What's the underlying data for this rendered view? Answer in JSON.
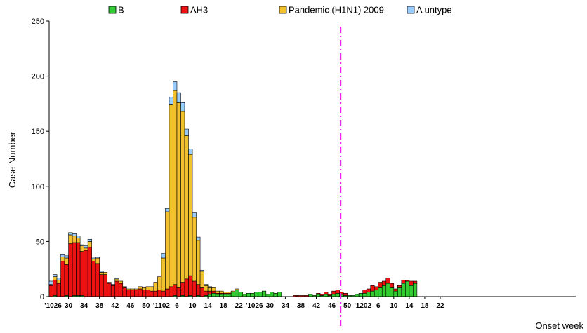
{
  "chart_data": {
    "type": "bar",
    "stacked": true,
    "xlabel": "Onset week",
    "ylabel": "Case Number",
    "ylim": [
      0,
      250
    ],
    "yticks": [
      0,
      50,
      100,
      150,
      200,
      250
    ],
    "legend_position": "top",
    "x_tick_labels": [
      "'1026",
      "30",
      "34",
      "38",
      "42",
      "46",
      "50",
      "'1102",
      "6",
      "10",
      "14",
      "18",
      "22",
      "'1026",
      "30",
      "34",
      "38",
      "42",
      "46",
      "50",
      "'1202",
      "6",
      "10",
      "14",
      "18",
      "22"
    ],
    "series": [
      {
        "name": "B",
        "color": "#33CC33",
        "values": [
          0,
          1,
          0,
          0,
          1,
          0,
          1,
          1,
          1,
          0,
          0,
          0,
          0,
          0,
          0,
          0,
          0,
          0,
          0,
          0,
          0,
          0,
          0,
          0,
          0,
          0,
          0,
          0,
          0,
          0,
          0,
          0,
          1,
          0,
          1,
          0,
          1,
          0,
          1,
          0,
          1,
          2,
          3,
          2,
          2,
          2,
          2,
          4,
          6,
          4,
          2,
          3,
          3,
          4,
          4,
          5,
          2,
          4,
          3,
          4,
          0,
          0,
          0,
          0,
          0,
          0,
          0,
          2,
          1,
          2,
          1,
          2,
          1,
          2,
          3,
          2,
          1,
          1,
          1,
          2,
          3,
          3,
          4,
          5,
          6,
          8,
          10,
          12,
          8,
          5,
          8,
          12,
          14,
          10,
          12,
          0,
          0,
          0,
          0,
          0,
          0,
          0,
          0,
          0,
          0,
          0,
          0,
          0,
          0,
          0,
          0,
          0,
          0,
          0,
          0,
          0,
          0,
          0,
          0,
          0,
          0,
          0,
          0,
          0,
          0,
          0,
          0,
          0,
          0,
          0,
          0,
          0,
          0,
          0,
          0,
          0
        ]
      },
      {
        "name": "AH3",
        "color": "#EE1111",
        "values": [
          10,
          14,
          12,
          32,
          28,
          48,
          48,
          48,
          40,
          42,
          45,
          32,
          30,
          20,
          20,
          12,
          10,
          14,
          12,
          8,
          6,
          6,
          6,
          7,
          6,
          6,
          5,
          5,
          6,
          5,
          7,
          9,
          10,
          8,
          12,
          16,
          18,
          14,
          10,
          8,
          4,
          3,
          2,
          1,
          1,
          1,
          1,
          0,
          0,
          0,
          0,
          0,
          0,
          0,
          0,
          0,
          0,
          0,
          0,
          0,
          0,
          0,
          0,
          1,
          1,
          1,
          1,
          0,
          0,
          1,
          1,
          2,
          1,
          3,
          3,
          2,
          2,
          0,
          0,
          0,
          0,
          3,
          3,
          5,
          3,
          5,
          4,
          5,
          4,
          2,
          2,
          3,
          1,
          4,
          2,
          0,
          0,
          0,
          0,
          0,
          0,
          0,
          0,
          0,
          0,
          0,
          0,
          0,
          0,
          0,
          0,
          0,
          0,
          0,
          0,
          0,
          0,
          0,
          0,
          0,
          0,
          0,
          0,
          0,
          0,
          0,
          0,
          0,
          0,
          0,
          0,
          0,
          0,
          0,
          0,
          0
        ]
      },
      {
        "name": "Pandemic (H1N1) 2009",
        "color": "#F2C12E",
        "values": [
          1,
          3,
          3,
          4,
          6,
          8,
          6,
          4,
          5,
          2,
          5,
          2,
          5,
          2,
          2,
          1,
          1,
          2,
          2,
          1,
          1,
          1,
          1,
          2,
          2,
          3,
          4,
          8,
          12,
          30,
          70,
          165,
          176,
          168,
          155,
          130,
          110,
          58,
          40,
          15,
          5,
          3,
          3,
          2,
          2,
          1,
          1,
          1,
          1,
          0,
          0,
          0,
          0,
          0,
          0,
          0,
          0,
          0,
          0,
          0,
          0,
          0,
          0,
          0,
          0,
          0,
          0,
          0,
          0,
          0,
          0,
          0,
          0,
          0,
          0,
          0,
          0,
          0,
          0,
          0,
          0,
          0,
          0,
          0,
          0,
          0,
          0,
          0,
          0,
          0,
          0,
          0,
          0,
          0,
          0,
          0,
          0,
          0,
          0,
          0,
          0,
          0,
          0,
          0,
          0,
          0,
          0,
          0,
          0,
          0,
          0,
          0,
          0,
          0,
          0,
          0,
          0,
          0,
          0,
          0,
          0,
          0,
          0,
          0,
          0,
          0,
          0,
          0,
          0,
          0,
          0,
          0,
          0,
          0,
          0
        ]
      },
      {
        "name": "A untype",
        "color": "#99CCFF",
        "values": [
          3,
          2,
          2,
          2,
          2,
          2,
          2,
          2,
          1,
          2,
          2,
          1,
          1,
          1,
          0,
          0,
          0,
          1,
          0,
          0,
          0,
          0,
          0,
          0,
          0,
          0,
          0,
          0,
          0,
          4,
          3,
          7,
          8,
          9,
          8,
          6,
          5,
          4,
          3,
          1,
          1,
          1,
          0,
          0,
          0,
          0,
          0,
          0,
          0,
          0,
          0,
          0,
          0,
          0,
          0,
          0,
          0,
          0,
          0,
          0,
          0,
          0,
          0,
          0,
          0,
          0,
          0,
          0,
          0,
          0,
          0,
          0,
          0,
          0,
          0,
          0,
          0,
          0,
          0,
          0,
          0,
          0,
          0,
          0,
          0,
          0,
          0,
          0,
          0,
          0,
          0,
          0,
          0,
          0,
          0,
          0,
          0,
          0,
          0,
          0,
          0,
          0,
          0,
          0,
          0,
          0,
          0,
          0,
          0,
          0,
          0,
          0,
          0,
          0,
          0,
          0,
          0,
          0,
          0,
          0,
          0,
          0,
          0,
          0,
          0,
          0,
          0,
          0,
          0,
          0,
          0,
          0,
          0,
          0,
          0,
          0,
          0,
          0
        ]
      }
    ],
    "reference_line": {
      "color": "#EE22EE",
      "style": "dash-dot"
    }
  }
}
